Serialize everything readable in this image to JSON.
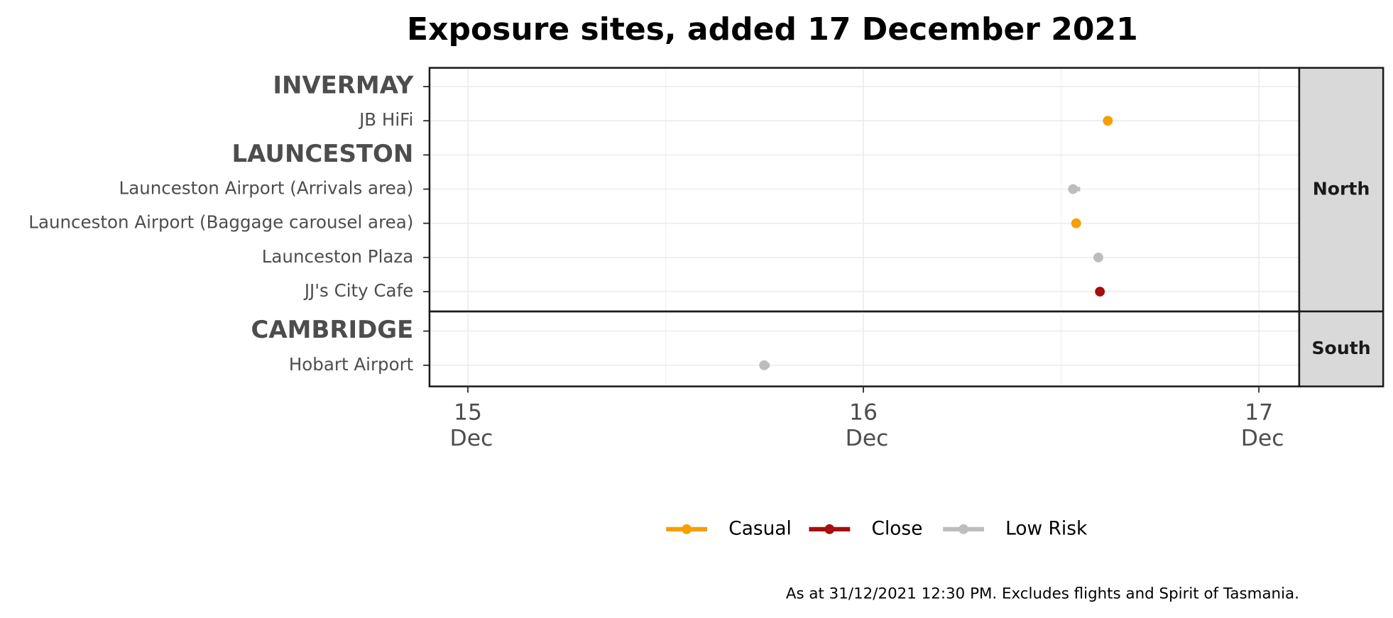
{
  "chart_data": {
    "type": "timeline",
    "title": "Exposure sites, added 17 December 2021",
    "caption": "As at 31/12/2021 12:30 PM. Excludes flights and Spirit of Tasmania.",
    "xlim": [
      14.903,
      17.102
    ],
    "xticks": [
      {
        "value": 15,
        "label": "15 Dec"
      },
      {
        "value": 16,
        "label": "16 Dec"
      },
      {
        "value": 17,
        "label": "17 Dec"
      }
    ],
    "grid": true,
    "series": [
      {
        "name": "Casual",
        "color": "#f59f00"
      },
      {
        "name": "Close",
        "color": "#a50f0f"
      },
      {
        "name": "Low Risk",
        "color": "#bdbdbd"
      }
    ],
    "facets": [
      {
        "name": "North",
        "rows": [
          {
            "label": "INVERMAY",
            "heading": true
          },
          {
            "label": "JB HiFi",
            "series_index": 0,
            "start": 16.618,
            "end": 16.625
          },
          {
            "label": "LAUNCESTON",
            "heading": true
          },
          {
            "label": "Launceston Airport (Arrivals area)",
            "series_index": 2,
            "start": 16.53,
            "end": 16.548
          },
          {
            "label": "Launceston Airport (Baggage carousel area)",
            "series_index": 0,
            "start": 16.538,
            "end": 16.542
          },
          {
            "label": "Launceston Plaza",
            "series_index": 2,
            "start": 16.594,
            "end": 16.598
          },
          {
            "label": "JJ's City Cafe",
            "series_index": 1,
            "start": 16.598,
            "end": 16.603
          }
        ]
      },
      {
        "name": "South",
        "rows": [
          {
            "label": "CAMBRIDGE",
            "heading": true
          },
          {
            "label": "Hobart Airport",
            "series_index": 2,
            "start": 15.749,
            "end": 15.763
          }
        ]
      }
    ]
  }
}
